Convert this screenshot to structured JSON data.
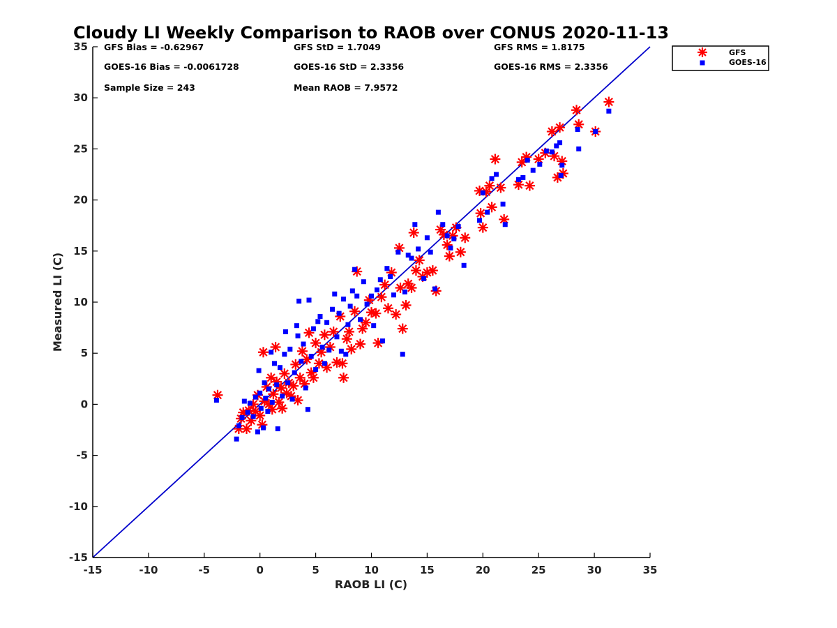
{
  "chart_data": {
    "type": "scatter",
    "title": "Cloudy LI Weekly Comparison to RAOB over CONUS 2020-11-13",
    "xlabel": "RAOB LI (C)",
    "ylabel": "Measured LI (C)",
    "xlim": [
      -15,
      35
    ],
    "ylim": [
      -15,
      35
    ],
    "xticks": [
      "-15",
      "-10",
      "-5",
      "0",
      "5",
      "10",
      "15",
      "20",
      "25",
      "30",
      "35"
    ],
    "yticks": [
      "-15",
      "-10",
      "-5",
      "0",
      "5",
      "10",
      "15",
      "20",
      "25",
      "30",
      "35"
    ],
    "grid": false,
    "legend_position": "outside top-right",
    "stats": {
      "gfs_bias": "GFS Bias = -0.62967",
      "gfs_std": "GFS StD = 1.7049",
      "gfs_rms": "GFS RMS = 1.8175",
      "goes_bias": "GOES-16 Bias = -0.0061728",
      "goes_std": "GOES-16 StD = 2.3356",
      "goes_rms": "GOES-16 RMS = 2.3356",
      "sample_size": "Sample Size = 243",
      "mean_raob": "Mean RAOB = 7.9572"
    },
    "reference_line": {
      "from": [
        -15,
        -15
      ],
      "to": [
        35,
        35
      ],
      "color": "#0000cc"
    },
    "series": [
      {
        "name": "GFS",
        "marker": "asterisk",
        "color": "#ff0000",
        "points": [
          [
            -3.8,
            0.9
          ],
          [
            -1.9,
            -2.4
          ],
          [
            -1.7,
            -1.4
          ],
          [
            -1.5,
            -0.8
          ],
          [
            -1.2,
            -2.4
          ],
          [
            -1.0,
            -0.6
          ],
          [
            -0.8,
            -1.6
          ],
          [
            -0.6,
            0.0
          ],
          [
            -0.4,
            -0.7
          ],
          [
            -0.2,
            0.9
          ],
          [
            0.0,
            -1.1
          ],
          [
            0.2,
            -2.0
          ],
          [
            0.3,
            5.1
          ],
          [
            0.4,
            0.3
          ],
          [
            0.6,
            1.7
          ],
          [
            0.8,
            0.0
          ],
          [
            1.0,
            2.6
          ],
          [
            1.1,
            -0.5
          ],
          [
            1.2,
            1.0
          ],
          [
            1.4,
            5.6
          ],
          [
            1.5,
            2.2
          ],
          [
            1.7,
            0.2
          ],
          [
            1.9,
            1.6
          ],
          [
            2.0,
            -0.4
          ],
          [
            2.2,
            3.0
          ],
          [
            2.4,
            1.1
          ],
          [
            2.6,
            2.1
          ],
          [
            2.8,
            0.8
          ],
          [
            3.0,
            1.8
          ],
          [
            3.2,
            3.9
          ],
          [
            3.4,
            0.4
          ],
          [
            3.6,
            2.6
          ],
          [
            3.8,
            5.2
          ],
          [
            4.0,
            2.0
          ],
          [
            4.2,
            4.4
          ],
          [
            4.4,
            7.0
          ],
          [
            4.6,
            3.1
          ],
          [
            4.8,
            2.6
          ],
          [
            5.0,
            6.0
          ],
          [
            5.3,
            4.0
          ],
          [
            5.5,
            5.1
          ],
          [
            5.8,
            6.8
          ],
          [
            6.0,
            3.6
          ],
          [
            6.3,
            5.6
          ],
          [
            6.6,
            7.1
          ],
          [
            6.9,
            4.1
          ],
          [
            7.2,
            8.6
          ],
          [
            7.4,
            4.0
          ],
          [
            7.5,
            2.6
          ],
          [
            7.8,
            6.4
          ],
          [
            8.0,
            7.1
          ],
          [
            8.2,
            5.4
          ],
          [
            8.5,
            9.1
          ],
          [
            8.7,
            13.0
          ],
          [
            9.0,
            5.9
          ],
          [
            9.2,
            7.4
          ],
          [
            9.5,
            8.0
          ],
          [
            9.8,
            10.2
          ],
          [
            10.0,
            9.0
          ],
          [
            10.4,
            8.9
          ],
          [
            10.6,
            6.0
          ],
          [
            10.9,
            10.5
          ],
          [
            11.2,
            11.7
          ],
          [
            11.5,
            9.4
          ],
          [
            11.8,
            12.9
          ],
          [
            12.2,
            8.8
          ],
          [
            12.5,
            15.3
          ],
          [
            12.6,
            11.4
          ],
          [
            12.8,
            7.4
          ],
          [
            13.1,
            9.7
          ],
          [
            13.3,
            11.8
          ],
          [
            13.6,
            11.4
          ],
          [
            13.8,
            16.8
          ],
          [
            14.0,
            13.1
          ],
          [
            14.3,
            14.1
          ],
          [
            14.6,
            12.5
          ],
          [
            15.0,
            12.9
          ],
          [
            15.5,
            13.1
          ],
          [
            15.8,
            11.1
          ],
          [
            16.2,
            17.1
          ],
          [
            16.5,
            16.6
          ],
          [
            16.8,
            15.6
          ],
          [
            17.0,
            14.5
          ],
          [
            17.3,
            16.5
          ],
          [
            17.6,
            17.3
          ],
          [
            18.0,
            14.9
          ],
          [
            18.4,
            16.3
          ],
          [
            19.7,
            20.9
          ],
          [
            19.8,
            18.7
          ],
          [
            20.0,
            17.3
          ],
          [
            20.3,
            20.8
          ],
          [
            20.6,
            21.4
          ],
          [
            20.8,
            19.3
          ],
          [
            21.1,
            24.0
          ],
          [
            21.6,
            21.2
          ],
          [
            21.9,
            18.1
          ],
          [
            23.2,
            21.5
          ],
          [
            23.5,
            23.7
          ],
          [
            23.9,
            24.2
          ],
          [
            24.2,
            21.4
          ],
          [
            25.0,
            24.0
          ],
          [
            25.6,
            24.6
          ],
          [
            26.2,
            26.7
          ],
          [
            26.4,
            24.3
          ],
          [
            26.7,
            22.2
          ],
          [
            26.9,
            27.1
          ],
          [
            27.1,
            23.8
          ],
          [
            27.2,
            22.6
          ],
          [
            28.4,
            28.8
          ],
          [
            28.6,
            27.4
          ],
          [
            30.1,
            26.7
          ],
          [
            31.3,
            29.6
          ]
        ]
      },
      {
        "name": "GOES-16",
        "marker": "square",
        "color": "#0000ff",
        "points": [
          [
            -3.9,
            0.4
          ],
          [
            -2.1,
            -3.4
          ],
          [
            -1.9,
            -2.1
          ],
          [
            -1.6,
            -1.3
          ],
          [
            -1.4,
            0.3
          ],
          [
            -1.1,
            -0.8
          ],
          [
            -0.9,
            0.1
          ],
          [
            -0.6,
            -1.2
          ],
          [
            -0.4,
            0.7
          ],
          [
            -0.2,
            -2.7
          ],
          [
            -0.1,
            3.3
          ],
          [
            0.0,
            1.1
          ],
          [
            0.1,
            -0.4
          ],
          [
            0.3,
            -2.3
          ],
          [
            0.4,
            2.1
          ],
          [
            0.5,
            0.6
          ],
          [
            0.7,
            -0.7
          ],
          [
            0.8,
            1.5
          ],
          [
            1.0,
            5.1
          ],
          [
            1.1,
            0.2
          ],
          [
            1.3,
            4.0
          ],
          [
            1.5,
            1.9
          ],
          [
            1.6,
            -2.4
          ],
          [
            1.8,
            3.6
          ],
          [
            2.0,
            0.8
          ],
          [
            2.2,
            4.9
          ],
          [
            2.3,
            7.1
          ],
          [
            2.5,
            2.1
          ],
          [
            2.7,
            5.4
          ],
          [
            2.9,
            0.5
          ],
          [
            3.1,
            3.1
          ],
          [
            3.3,
            7.7
          ],
          [
            3.4,
            6.7
          ],
          [
            3.5,
            10.1
          ],
          [
            3.7,
            4.2
          ],
          [
            3.9,
            5.9
          ],
          [
            4.1,
            1.6
          ],
          [
            4.3,
            -0.5
          ],
          [
            4.4,
            10.2
          ],
          [
            4.6,
            4.7
          ],
          [
            4.8,
            7.4
          ],
          [
            5.0,
            3.4
          ],
          [
            5.2,
            8.1
          ],
          [
            5.4,
            8.6
          ],
          [
            5.6,
            5.6
          ],
          [
            5.8,
            4.0
          ],
          [
            6.0,
            8.0
          ],
          [
            6.2,
            5.3
          ],
          [
            6.5,
            9.3
          ],
          [
            6.7,
            10.8
          ],
          [
            6.9,
            6.6
          ],
          [
            7.1,
            8.9
          ],
          [
            7.3,
            5.2
          ],
          [
            7.5,
            10.3
          ],
          [
            7.7,
            4.9
          ],
          [
            7.9,
            7.8
          ],
          [
            8.1,
            9.6
          ],
          [
            8.3,
            11.1
          ],
          [
            8.5,
            13.2
          ],
          [
            8.7,
            10.6
          ],
          [
            9.0,
            8.3
          ],
          [
            9.3,
            12.0
          ],
          [
            9.6,
            9.8
          ],
          [
            10.0,
            10.6
          ],
          [
            10.2,
            7.7
          ],
          [
            10.5,
            11.2
          ],
          [
            10.8,
            12.2
          ],
          [
            11.0,
            6.2
          ],
          [
            11.4,
            13.3
          ],
          [
            11.7,
            12.5
          ],
          [
            12.0,
            10.7
          ],
          [
            12.4,
            14.9
          ],
          [
            12.8,
            4.9
          ],
          [
            13.0,
            11.0
          ],
          [
            13.3,
            14.6
          ],
          [
            13.6,
            14.3
          ],
          [
            13.9,
            17.6
          ],
          [
            14.2,
            15.2
          ],
          [
            14.7,
            12.3
          ],
          [
            15.0,
            16.3
          ],
          [
            15.3,
            14.9
          ],
          [
            15.7,
            11.3
          ],
          [
            16.0,
            18.8
          ],
          [
            16.4,
            17.6
          ],
          [
            16.8,
            16.5
          ],
          [
            17.1,
            15.3
          ],
          [
            17.4,
            16.2
          ],
          [
            17.8,
            17.4
          ],
          [
            18.3,
            13.6
          ],
          [
            19.7,
            18.0
          ],
          [
            20.0,
            20.7
          ],
          [
            20.4,
            18.8
          ],
          [
            20.8,
            22.1
          ],
          [
            21.2,
            22.5
          ],
          [
            21.8,
            19.6
          ],
          [
            22.0,
            17.6
          ],
          [
            23.2,
            22.0
          ],
          [
            23.6,
            22.2
          ],
          [
            24.0,
            23.9
          ],
          [
            24.5,
            22.9
          ],
          [
            25.1,
            23.5
          ],
          [
            25.7,
            24.8
          ],
          [
            26.2,
            24.7
          ],
          [
            26.6,
            25.3
          ],
          [
            26.9,
            25.6
          ],
          [
            27.0,
            22.4
          ],
          [
            27.1,
            23.4
          ],
          [
            28.5,
            26.9
          ],
          [
            28.6,
            25.0
          ],
          [
            30.1,
            26.7
          ],
          [
            31.3,
            28.7
          ]
        ]
      }
    ]
  }
}
